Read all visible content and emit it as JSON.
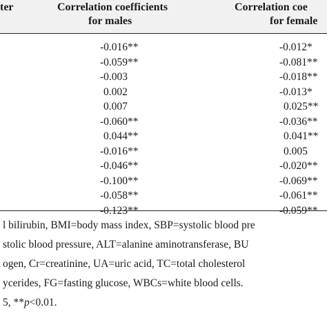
{
  "table": {
    "headers": {
      "col0_fragment": "ter",
      "males_line1": "Correlation coefficients",
      "males_line2": "for males",
      "females_line1": "Correlation coe",
      "females_line2": "for female"
    },
    "rows": [
      {
        "male": "-0.016**",
        "female": "-0.012*"
      },
      {
        "male": "-0.059**",
        "female": "-0.081**"
      },
      {
        "male": "-0.003",
        "female": "-0.018**"
      },
      {
        "male": "0.002",
        "female": "-0.013*"
      },
      {
        "male": "0.007",
        "female": "0.025**"
      },
      {
        "male": "-0.060**",
        "female": "-0.036**"
      },
      {
        "male": "0.044**",
        "female": "0.041**"
      },
      {
        "male": "-0.016**",
        "female": "0.005"
      },
      {
        "male": "-0.046**",
        "female": "-0.020**"
      },
      {
        "male": "-0.100**",
        "female": "-0.069**"
      },
      {
        "male": "-0.058**",
        "female": "-0.061**"
      },
      {
        "male": "-0.123**",
        "female": "-0.059**"
      }
    ]
  },
  "footnote": {
    "line1": "l bilirubin, BMI=body mass index, SBP=systolic blood pre",
    "line2": "stolic blood pressure, ALT=alanine aminotransferase, BU",
    "line3": "ogen, Cr=creatinine, UA=uric acid, TC=total cholesterol",
    "line4": "ycerides, FG=fasting glucose, WBCs=white blood cells.",
    "line5_prefix": "5, **",
    "line5_p": "p",
    "line5_suffix": "<0.01."
  }
}
